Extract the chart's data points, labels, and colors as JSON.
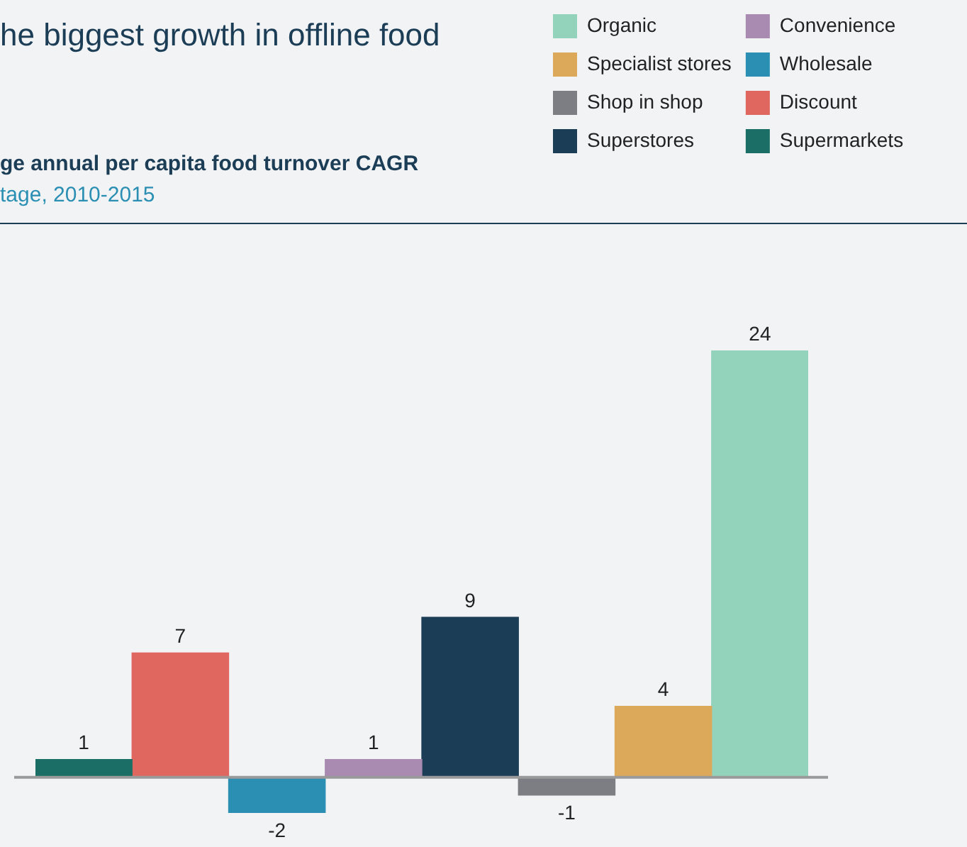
{
  "chart_data": {
    "type": "bar",
    "title": "he biggest growth in offline food",
    "subtitle": "ge annual per capita food turnover CAGR",
    "annotations": [
      "tage, 2010-2015"
    ],
    "categories": [
      null
    ],
    "series": [
      {
        "name": "Supermarkets",
        "color": "#1a6e65",
        "values": [
          1
        ]
      },
      {
        "name": "Discount",
        "color": "#e06760",
        "values": [
          7
        ]
      },
      {
        "name": "Wholesale",
        "color": "#2b8fb3",
        "values": [
          -2
        ]
      },
      {
        "name": "Convenience",
        "color": "#a98ab0",
        "values": [
          1
        ]
      },
      {
        "name": "Superstores",
        "color": "#1c3d56",
        "values": [
          9
        ]
      },
      {
        "name": "Shop in shop",
        "color": "#7d7e84",
        "values": [
          -1
        ]
      },
      {
        "name": "Specialist stores",
        "color": "#dca85a",
        "values": [
          4
        ]
      },
      {
        "name": "Organic",
        "color": "#93d3bb",
        "values": [
          24
        ]
      }
    ],
    "data_labels": true,
    "legend": "top right"
  }
}
